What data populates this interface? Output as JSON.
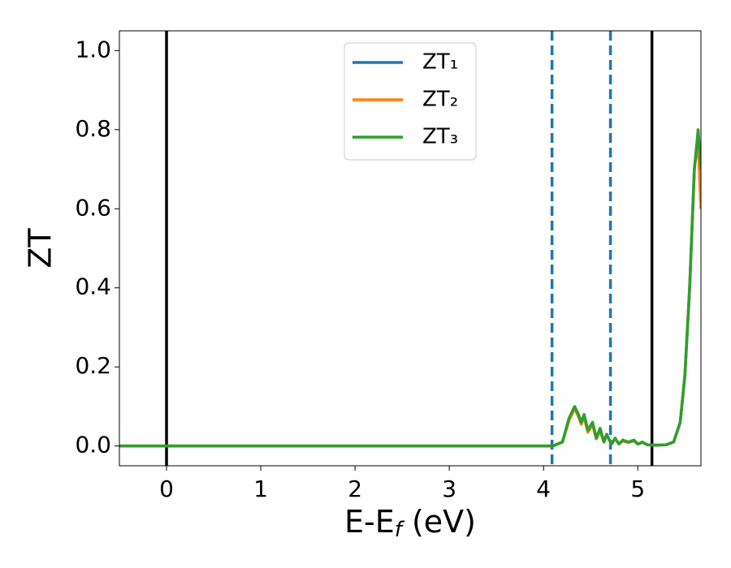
{
  "chart_data": {
    "type": "line",
    "xlabel": "E-Ef (eV)",
    "ylabel": "ZT",
    "xlim": [
      -0.5,
      5.67
    ],
    "ylim": [
      -0.05,
      1.05
    ],
    "xticks": [
      0,
      1,
      2,
      3,
      4,
      5
    ],
    "yticks": [
      {
        "value": 0,
        "label": "0.0"
      },
      {
        "value": 0.2,
        "label": "0.2"
      },
      {
        "value": 0.4,
        "label": "0.4"
      },
      {
        "value": 0.6,
        "label": "0.6"
      },
      {
        "value": 0.8,
        "label": "0.8"
      },
      {
        "value": 1,
        "label": "1.0"
      }
    ],
    "vlines": [
      {
        "x": 0,
        "color": "#000000",
        "style": "solid"
      },
      {
        "x": 5.15,
        "color": "#000000",
        "style": "solid"
      },
      {
        "x": 4.09,
        "color": "#1f77b4",
        "style": "dashed"
      },
      {
        "x": 4.71,
        "color": "#1f77b4",
        "style": "dashed"
      }
    ],
    "legend": "upper center",
    "x": [
      -0.5,
      4.1,
      4.2,
      4.27,
      4.33,
      4.37,
      4.4,
      4.43,
      4.47,
      4.52,
      4.56,
      4.6,
      4.64,
      4.67,
      4.72,
      4.76,
      4.8,
      4.84,
      4.9,
      4.96,
      5.0,
      5.05,
      5.1,
      5.2,
      5.3,
      5.38,
      5.45,
      5.5,
      5.55,
      5.6,
      5.64,
      5.67
    ],
    "series": [
      {
        "name": "ZT₁",
        "color": "#1f77b4",
        "values": [
          0,
          0,
          0.01,
          0.065,
          0.095,
          0.075,
          0.055,
          0.075,
          0.035,
          0.055,
          0.018,
          0.04,
          0.01,
          0.028,
          0.005,
          0.018,
          0.005,
          0.013,
          0.009,
          0.013,
          0.005,
          0.009,
          0.003,
          0.002,
          0.003,
          0.01,
          0.06,
          0.18,
          0.4,
          0.7,
          0.78,
          0.6
        ]
      },
      {
        "name": "ZT₂",
        "color": "#ff7f0e",
        "values": [
          0,
          0,
          0.01,
          0.065,
          0.095,
          0.075,
          0.055,
          0.075,
          0.035,
          0.055,
          0.018,
          0.04,
          0.01,
          0.028,
          0.005,
          0.018,
          0.005,
          0.013,
          0.009,
          0.013,
          0.005,
          0.009,
          0.003,
          0.002,
          0.003,
          0.01,
          0.06,
          0.18,
          0.4,
          0.7,
          0.78,
          0.6
        ]
      },
      {
        "name": "ZT₃",
        "color": "#2ca02c",
        "values": [
          0,
          0,
          0.01,
          0.07,
          0.1,
          0.08,
          0.06,
          0.08,
          0.04,
          0.06,
          0.02,
          0.045,
          0.01,
          0.03,
          0.005,
          0.02,
          0.005,
          0.015,
          0.01,
          0.015,
          0.005,
          0.01,
          0.003,
          0.002,
          0.003,
          0.01,
          0.06,
          0.18,
          0.4,
          0.7,
          0.8,
          0.7
        ]
      }
    ]
  }
}
